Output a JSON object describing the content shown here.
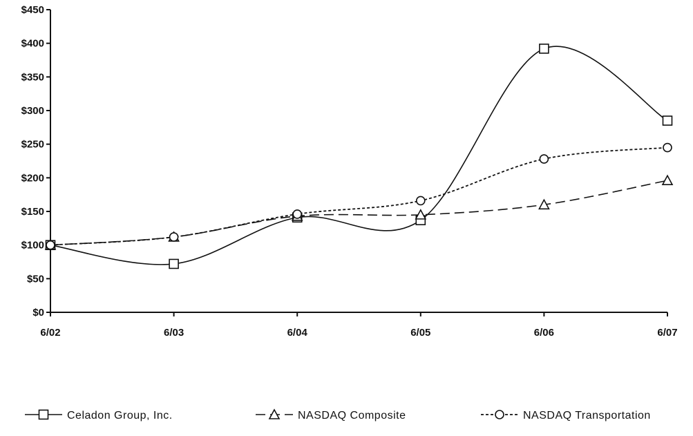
{
  "chart_data": {
    "type": "line",
    "categories": [
      "6/02",
      "6/03",
      "6/04",
      "6/05",
      "6/06",
      "6/07"
    ],
    "y_tick_labels": [
      "$0",
      "$50",
      "$100",
      "$150",
      "$200",
      "$250",
      "$300",
      "$350",
      "$400",
      "$450"
    ],
    "ylim": [
      0,
      450
    ],
    "grid": false,
    "legend_position": "bottom",
    "series": [
      {
        "name": "Celadon Group, Inc.",
        "values": [
          100,
          72,
          141,
          137,
          392,
          285
        ],
        "marker": "square",
        "dash": "solid"
      },
      {
        "name": "NASDAQ Composite",
        "values": [
          100,
          112,
          143,
          145,
          160,
          196
        ],
        "marker": "triangle",
        "dash": "long-dash"
      },
      {
        "name": "NASDAQ Transportation",
        "values": [
          100,
          112,
          146,
          166,
          228,
          245
        ],
        "marker": "circle",
        "dash": "short-dash"
      }
    ]
  }
}
